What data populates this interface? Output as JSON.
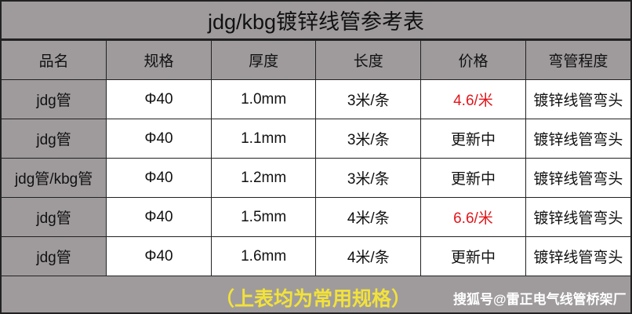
{
  "title": "jdg/kbg镀锌线管参考表",
  "columns": [
    "品名",
    "规格",
    "厚度",
    "长度",
    "价格",
    "弯管程度"
  ],
  "rows": [
    {
      "name": "jdg管",
      "spec": "Φ40",
      "thickness": "1.0mm",
      "length": "3米/条",
      "price": "4.6/米",
      "price_highlight": true,
      "bend": "镀锌线管弯头"
    },
    {
      "name": "jdg管",
      "spec": "Φ40",
      "thickness": "1.1mm",
      "length": "3米/条",
      "price": "更新中",
      "price_highlight": false,
      "bend": "镀锌线管弯头"
    },
    {
      "name": "jdg管/kbg管",
      "spec": "Φ40",
      "thickness": "1.2mm",
      "length": "3米/条",
      "price": "更新中",
      "price_highlight": false,
      "bend": "镀锌线管弯头"
    },
    {
      "name": "jdg管",
      "spec": "Φ40",
      "thickness": "1.5mm",
      "length": "4米/条",
      "price": "6.6/米",
      "price_highlight": true,
      "bend": "镀锌线管弯头"
    },
    {
      "name": "jdg管",
      "spec": "Φ40",
      "thickness": "1.6mm",
      "length": "4米/条",
      "price": "更新中",
      "price_highlight": false,
      "bend": "镀锌线管弯头"
    }
  ],
  "footer": {
    "note": "（上表均为常用规格）",
    "watermark": "搜狐号@雷正电气线管桥架厂"
  },
  "colors": {
    "header_bg": "#9f9b9c",
    "price_highlight": "#e0161b",
    "note": "#f2e23a"
  }
}
